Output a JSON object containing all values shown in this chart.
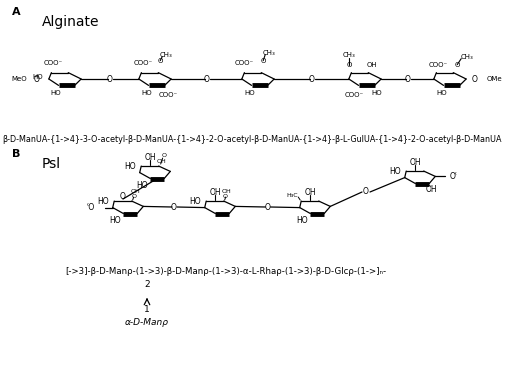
{
  "bg_color": "#ffffff",
  "label_A": "A",
  "label_B": "B",
  "alginate_label": "Alginate",
  "psl_label": "Psl",
  "alginate_formula": "β-D-ManUA-{1->4}-3-O-acetyl-β-D-ManUA-{1->4}-2-O-acetyl-β-D-ManUA-{1->4}-β-L-GulUA-{1->4}-2-O-acetyl-β-D-ManUA",
  "psl_formula": "[->3]-β-D-Manρ-(1->3)-β-D-Manρ-(1->3)-α-L-Rhaρ-(1->3)-β-D-Glcρ-(1->]ₙ-",
  "branch_num_top": "2",
  "branch_num_bot": "1",
  "branch_label": "α-D-Manρ"
}
